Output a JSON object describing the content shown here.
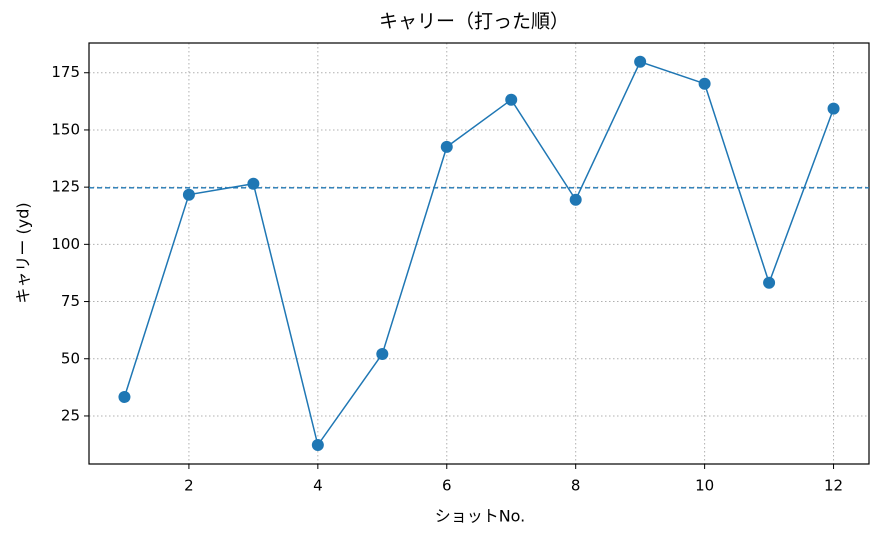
{
  "chart_data": {
    "type": "line",
    "title": "キャリー（打った順）",
    "xlabel": "ショットNo.",
    "ylabel": "キャリー (yd)",
    "x": [
      1,
      2,
      3,
      4,
      5,
      6,
      7,
      8,
      9,
      10,
      11,
      12
    ],
    "series": [
      {
        "color": "#1f77b4",
        "values": [
          33.3,
          121.7,
          126.5,
          12.3,
          52.1,
          142.6,
          163.2,
          119.5,
          179.8,
          170.2,
          83.2,
          159.3
        ]
      }
    ],
    "hline": 124.7,
    "hline_color": "#1f77b4",
    "xlim": [
      0.45,
      12.55
    ],
    "ylim": [
      4,
      188
    ],
    "xticks": [
      2,
      4,
      6,
      8,
      10,
      12
    ],
    "yticks": [
      25,
      50,
      75,
      100,
      125,
      150,
      175
    ],
    "grid": true
  }
}
